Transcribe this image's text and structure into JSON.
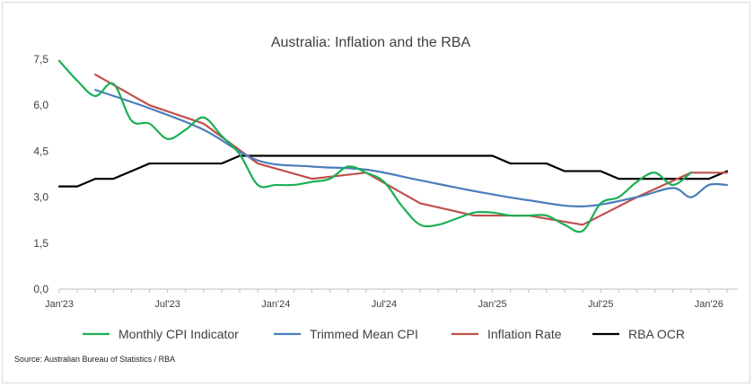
{
  "chart_data": {
    "type": "line",
    "title": "Australia: Inflation and the RBA",
    "xlabel": "",
    "ylabel": "",
    "ylim": [
      0,
      7.5
    ],
    "y_ticks": [
      "0,0",
      "1,5",
      "3,0",
      "4,5",
      "6,0",
      "7,5"
    ],
    "y_tick_values": [
      0,
      1.5,
      3.0,
      4.5,
      6.0,
      7.5
    ],
    "x_ticks": [
      "Jan'23",
      "Jul'23",
      "Jan'24",
      "Jul'24",
      "Jan'25",
      "Jul'25",
      "Jan'26"
    ],
    "x_tick_values": [
      0,
      6,
      12,
      18,
      24,
      30,
      36
    ],
    "grid": false,
    "legend_position": "bottom",
    "series": [
      {
        "name": "Monthly CPI Indicator",
        "color": "#1aaf54",
        "smooth": true,
        "points": [
          [
            0,
            7.45
          ],
          [
            1,
            6.8
          ],
          [
            2,
            6.3
          ],
          [
            3,
            6.7
          ],
          [
            4,
            5.5
          ],
          [
            5,
            5.4
          ],
          [
            6,
            4.9
          ],
          [
            7,
            5.2
          ],
          [
            8,
            5.6
          ],
          [
            9,
            5.0
          ],
          [
            10,
            4.4
          ],
          [
            11,
            3.4
          ],
          [
            12,
            3.4
          ],
          [
            13,
            3.4
          ],
          [
            14,
            3.5
          ],
          [
            15,
            3.6
          ],
          [
            16,
            4.0
          ],
          [
            17,
            3.8
          ],
          [
            18,
            3.5
          ],
          [
            19,
            2.7
          ],
          [
            20,
            2.1
          ],
          [
            21,
            2.1
          ],
          [
            22,
            2.3
          ],
          [
            23,
            2.5
          ],
          [
            24,
            2.5
          ],
          [
            25,
            2.4
          ],
          [
            26,
            2.4
          ],
          [
            27,
            2.4
          ],
          [
            28,
            2.1
          ],
          [
            29,
            1.9
          ],
          [
            30,
            2.8
          ],
          [
            31,
            3.0
          ],
          [
            32,
            3.5
          ],
          [
            33,
            3.8
          ],
          [
            34,
            3.4
          ],
          [
            35,
            3.8
          ]
        ]
      },
      {
        "name": "Trimmed Mean CPI",
        "color": "#4a7ebb",
        "smooth": true,
        "points": [
          [
            2,
            6.5
          ],
          [
            5,
            5.9
          ],
          [
            8,
            5.2
          ],
          [
            11,
            4.2
          ],
          [
            14,
            4.0
          ],
          [
            17,
            3.9
          ],
          [
            20,
            3.55
          ],
          [
            23,
            3.2
          ],
          [
            26,
            2.9
          ],
          [
            29,
            2.7
          ],
          [
            32,
            3.0
          ],
          [
            34,
            3.3
          ],
          [
            35,
            3.0
          ],
          [
            36,
            3.4
          ],
          [
            37,
            3.4
          ]
        ]
      },
      {
        "name": "Inflation Rate",
        "color": "#c0504d",
        "smooth": false,
        "points": [
          [
            2,
            7.0
          ],
          [
            5,
            6.0
          ],
          [
            8,
            5.4
          ],
          [
            11,
            4.1
          ],
          [
            14,
            3.6
          ],
          [
            17,
            3.8
          ],
          [
            20,
            2.8
          ],
          [
            23,
            2.4
          ],
          [
            26,
            2.4
          ],
          [
            29,
            2.1
          ],
          [
            32,
            3.0
          ],
          [
            35,
            3.8
          ],
          [
            37,
            3.8
          ]
        ]
      },
      {
        "name": "RBA OCR",
        "color": "#000000",
        "smooth": false,
        "points": [
          [
            0,
            3.35
          ],
          [
            1,
            3.35
          ],
          [
            2,
            3.6
          ],
          [
            3,
            3.6
          ],
          [
            4,
            3.85
          ],
          [
            5,
            4.1
          ],
          [
            6,
            4.1
          ],
          [
            7,
            4.1
          ],
          [
            8,
            4.1
          ],
          [
            9,
            4.1
          ],
          [
            10,
            4.35
          ],
          [
            11,
            4.35
          ],
          [
            12,
            4.35
          ],
          [
            13,
            4.35
          ],
          [
            14,
            4.35
          ],
          [
            15,
            4.35
          ],
          [
            16,
            4.35
          ],
          [
            17,
            4.35
          ],
          [
            18,
            4.35
          ],
          [
            19,
            4.35
          ],
          [
            20,
            4.35
          ],
          [
            21,
            4.35
          ],
          [
            22,
            4.35
          ],
          [
            23,
            4.35
          ],
          [
            24,
            4.35
          ],
          [
            25,
            4.1
          ],
          [
            26,
            4.1
          ],
          [
            27,
            4.1
          ],
          [
            28,
            3.85
          ],
          [
            29,
            3.85
          ],
          [
            30,
            3.85
          ],
          [
            31,
            3.6
          ],
          [
            32,
            3.6
          ],
          [
            33,
            3.6
          ],
          [
            34,
            3.6
          ],
          [
            35,
            3.6
          ],
          [
            36,
            3.6
          ],
          [
            37,
            3.85
          ]
        ]
      }
    ]
  },
  "source_note": "Source: Australian Bureau of Statistics / RBA"
}
